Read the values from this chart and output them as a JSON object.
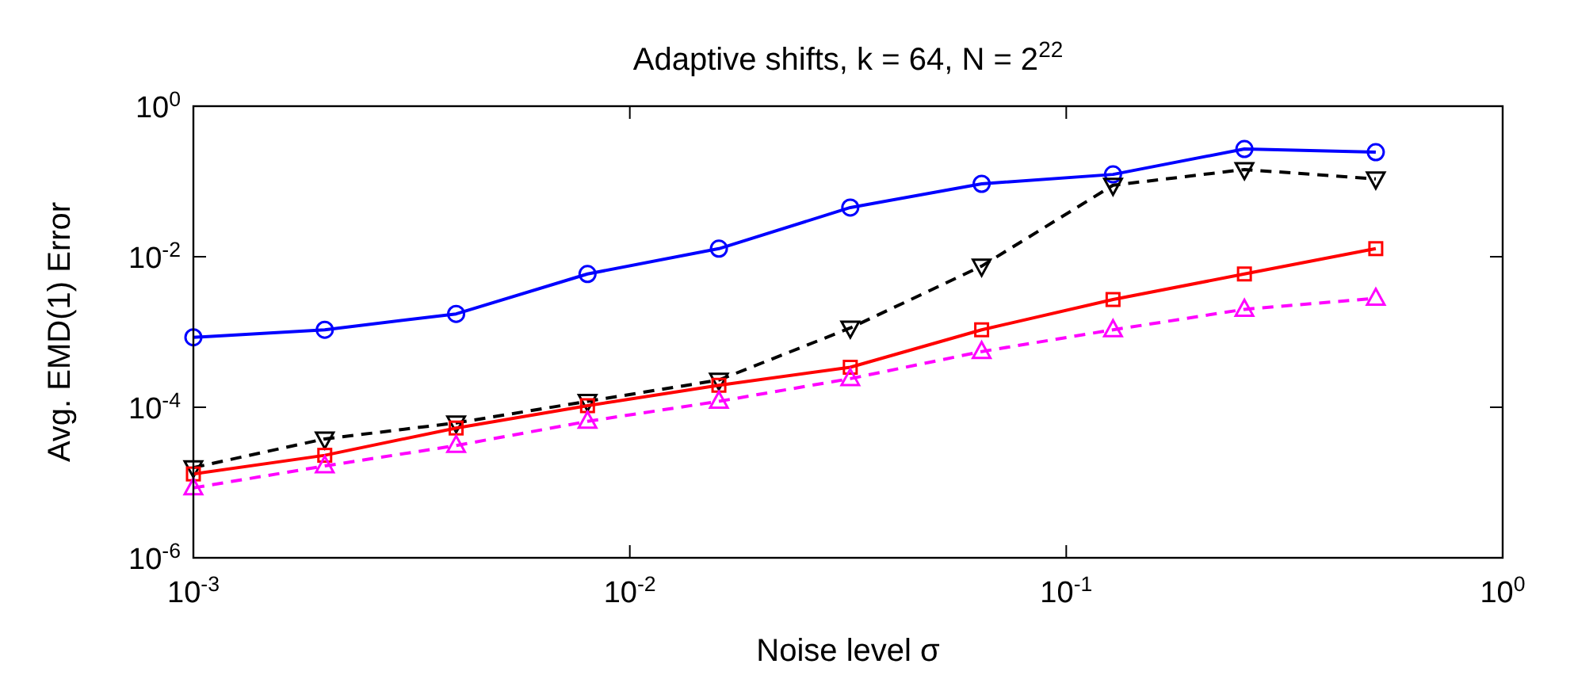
{
  "chart_data": {
    "type": "line",
    "title": "Adaptive shifts, k = 64, N = 2$^{22}$",
    "xlabel": "Noise level σ",
    "ylabel": "Avg. EMD(1) Error",
    "log": "xy",
    "grid": false,
    "x": [
      0.001,
      0.002,
      0.004,
      0.008,
      0.016,
      0.032,
      0.064,
      0.128,
      0.256,
      0.512
    ],
    "xlim": [
      0.001,
      1
    ],
    "xticks": [
      {
        "value": 0.001,
        "label": "10$^{-3}$"
      },
      {
        "value": 0.01,
        "label": "10$^{-2}$"
      },
      {
        "value": 0.1,
        "label": "10$^{-1}$"
      },
      {
        "value": 1,
        "label": "10$^{0}$"
      }
    ],
    "ylim": [
      1e-06,
      1
    ],
    "yticks": [
      {
        "value": 1e-06,
        "label": "10$^{-6}$"
      },
      {
        "value": 0.0001,
        "label": "10$^{-4}$"
      },
      {
        "value": 0.01,
        "label": "10$^{-2}$"
      },
      {
        "value": 1,
        "label": "10$^{0}$"
      }
    ],
    "series": [
      {
        "color": "#0000ff",
        "marker": "circle",
        "line_style": "solid",
        "values": [
          0.00085,
          0.00107,
          0.00174,
          0.0059,
          0.0128,
          0.045,
          0.093,
          0.124,
          0.27,
          0.245
        ]
      },
      {
        "color": "#000000",
        "marker": "triangle-down",
        "line_style": "dashed",
        "values": [
          1.58e-05,
          3.8e-05,
          6.2e-05,
          0.00012,
          0.00023,
          0.00113,
          0.0075,
          0.089,
          0.144,
          0.108
        ]
      },
      {
        "color": "#ff0000",
        "marker": "square",
        "line_style": "solid",
        "values": [
          1.3e-05,
          2.3e-05,
          5.3e-05,
          0.000105,
          0.000196,
          0.00034,
          0.00107,
          0.0027,
          0.0059,
          0.0128
        ]
      },
      {
        "color": "#ff00ff",
        "marker": "triangle",
        "line_style": "dashed",
        "values": [
          8.5e-06,
          1.66e-05,
          3.1e-05,
          6.5e-05,
          0.00012,
          0.00024,
          0.00055,
          0.00107,
          0.002,
          0.0028
        ]
      }
    ]
  }
}
